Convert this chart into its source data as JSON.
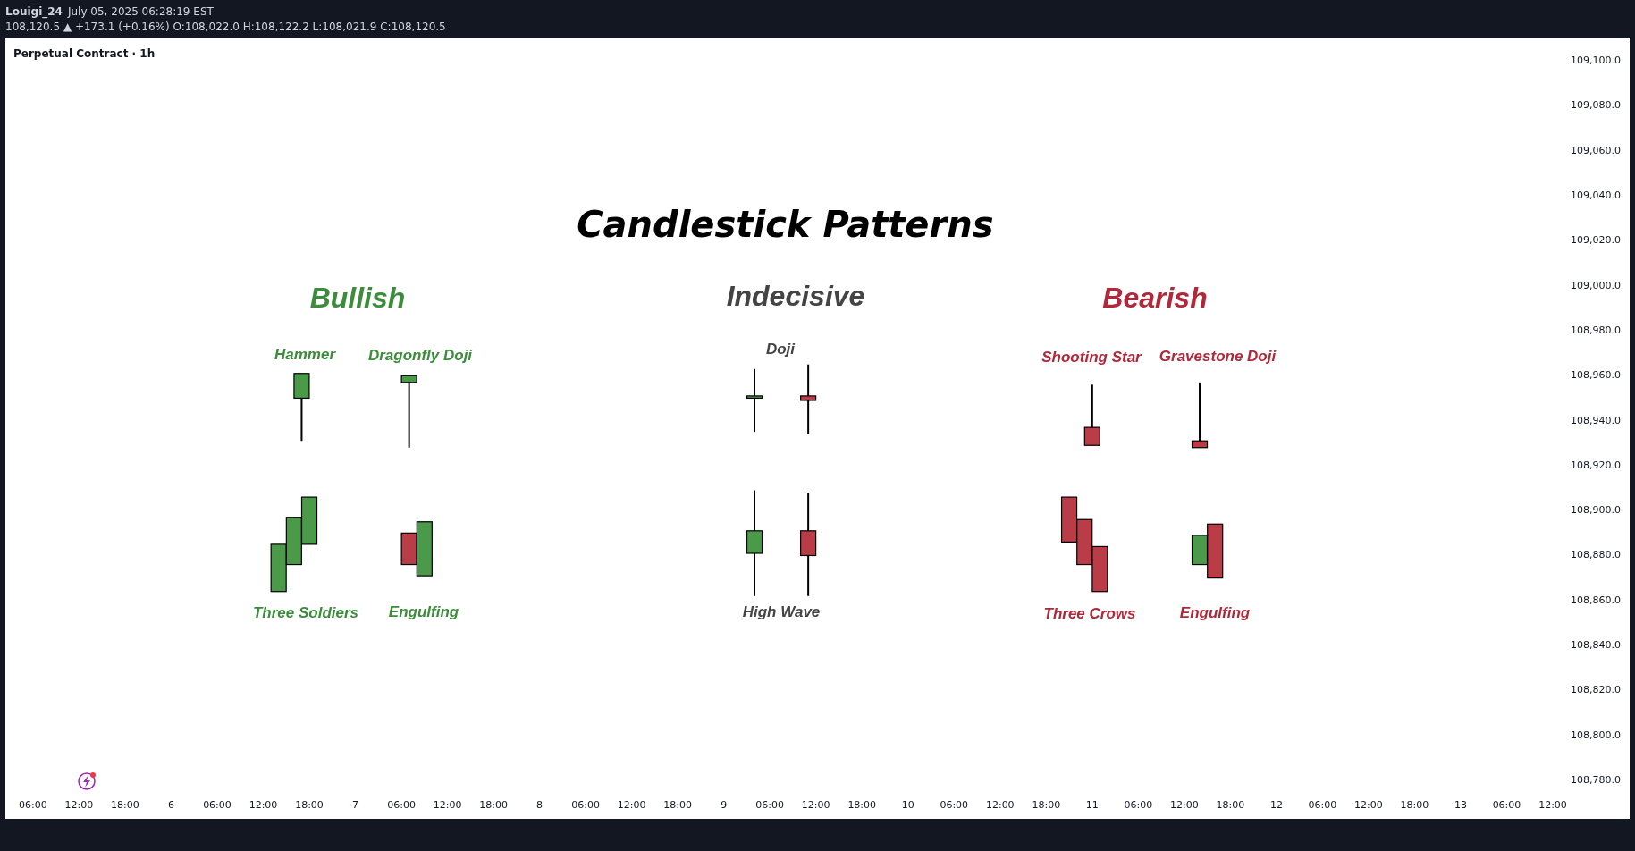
{
  "chart_data": {
    "type": "candlestick",
    "title": "Candlestick Patterns",
    "subtitle": "Perpetual Contract · 1h",
    "x": [
      "2025-07-06T14:00",
      "2025-07-06T16:00",
      "2025-07-06T17:00",
      "2025-07-06T18:00",
      "2025-07-07T07:00",
      "2025-07-07T07:00",
      "2025-07-07T09:00",
      "2025-07-09T04:00",
      "2025-07-09T04:00",
      "2025-07-09T11:00",
      "2025-07-09T11:00",
      "2025-07-10T21:00",
      "2025-07-10T23:00",
      "2025-07-11T00:00",
      "2025-07-11T01:00",
      "2025-07-11T14:00",
      "2025-07-11T14:00",
      "2025-07-11T16:00"
    ],
    "ohlc": [
      [
        108864,
        108885,
        108864,
        108885
      ],
      [
        108876,
        108897,
        108876,
        108897
      ],
      [
        108950,
        108961,
        108931,
        108961
      ],
      [
        108885,
        108906,
        108885,
        108906
      ],
      [
        108957,
        108960,
        108928,
        108960
      ],
      [
        108890,
        108890,
        108876,
        108876
      ],
      [
        108871,
        108895,
        108871,
        108895
      ],
      [
        108950,
        108963,
        108935,
        108951
      ],
      [
        108881,
        108909,
        108862,
        108891
      ],
      [
        108951,
        108965,
        108934,
        108949
      ],
      [
        108891,
        108908,
        108862,
        108880
      ],
      [
        108906,
        108906,
        108886,
        108886
      ],
      [
        108896,
        108896,
        108876,
        108876
      ],
      [
        108937,
        108956,
        108929,
        108929
      ],
      [
        108884,
        108884,
        108864,
        108864
      ],
      [
        108931,
        108957,
        108928,
        108928
      ],
      [
        108876,
        108889,
        108876,
        108889
      ],
      [
        108894,
        108894,
        108870,
        108870
      ]
    ],
    "colors": [
      "#4a9a4a",
      "#4a9a4a",
      "#4a9a4a",
      "#4a9a4a",
      "#4a9a4a",
      "#b93c46",
      "#4a9a4a",
      "#4a9a4a",
      "#4a9a4a",
      "#b93c46",
      "#b93c46",
      "#b93c46",
      "#b93c46",
      "#b93c46",
      "#b93c46",
      "#b93c46",
      "#4a9a4a",
      "#b93c46"
    ],
    "xlim": [
      "2025-07-05T02:24",
      "2025-07-13T12:00"
    ],
    "ylim": [
      108780,
      109110
    ],
    "yticks": [
      {
        "value": 108780,
        "label": "108,780.0"
      },
      {
        "value": 108800,
        "label": "108,800.0"
      },
      {
        "value": 108820,
        "label": "108,820.0"
      },
      {
        "value": 108840,
        "label": "108,840.0"
      },
      {
        "value": 108860,
        "label": "108,860.0"
      },
      {
        "value": 108880,
        "label": "108,880.0"
      },
      {
        "value": 108900,
        "label": "108,900.0"
      },
      {
        "value": 108920,
        "label": "108,920.0"
      },
      {
        "value": 108940,
        "label": "108,940.0"
      },
      {
        "value": 108960,
        "label": "108,960.0"
      },
      {
        "value": 108980,
        "label": "108,980.0"
      },
      {
        "value": 109000,
        "label": "109,000.0"
      },
      {
        "value": 109020,
        "label": "109,020.0"
      },
      {
        "value": 109040,
        "label": "109,040.0"
      },
      {
        "value": 109060,
        "label": "109,060.0"
      },
      {
        "value": 109080,
        "label": "109,080.0"
      },
      {
        "value": 109100,
        "label": "109,100.0"
      }
    ],
    "xticks": [
      {
        "value": "2025-07-05T06:00",
        "label": "06:00"
      },
      {
        "value": "2025-07-05T12:00",
        "label": "12:00"
      },
      {
        "value": "2025-07-05T18:00",
        "label": "18:00"
      },
      {
        "value": "2025-07-06T00:00",
        "label": "6"
      },
      {
        "value": "2025-07-06T06:00",
        "label": "06:00"
      },
      {
        "value": "2025-07-06T12:00",
        "label": "12:00"
      },
      {
        "value": "2025-07-06T18:00",
        "label": "18:00"
      },
      {
        "value": "2025-07-07T00:00",
        "label": "7"
      },
      {
        "value": "2025-07-07T06:00",
        "label": "06:00"
      },
      {
        "value": "2025-07-07T12:00",
        "label": "12:00"
      },
      {
        "value": "2025-07-07T18:00",
        "label": "18:00"
      },
      {
        "value": "2025-07-08T00:00",
        "label": "8"
      },
      {
        "value": "2025-07-08T06:00",
        "label": "06:00"
      },
      {
        "value": "2025-07-08T12:00",
        "label": "12:00"
      },
      {
        "value": "2025-07-08T18:00",
        "label": "18:00"
      },
      {
        "value": "2025-07-09T00:00",
        "label": "9"
      },
      {
        "value": "2025-07-09T06:00",
        "label": "06:00"
      },
      {
        "value": "2025-07-09T12:00",
        "label": "12:00"
      },
      {
        "value": "2025-07-09T18:00",
        "label": "18:00"
      },
      {
        "value": "2025-07-10T00:00",
        "label": "10"
      },
      {
        "value": "2025-07-10T06:00",
        "label": "06:00"
      },
      {
        "value": "2025-07-10T12:00",
        "label": "12:00"
      },
      {
        "value": "2025-07-10T18:00",
        "label": "18:00"
      },
      {
        "value": "2025-07-11T00:00",
        "label": "11"
      },
      {
        "value": "2025-07-11T06:00",
        "label": "06:00"
      },
      {
        "value": "2025-07-11T12:00",
        "label": "12:00"
      },
      {
        "value": "2025-07-11T18:00",
        "label": "18:00"
      },
      {
        "value": "2025-07-12T00:00",
        "label": "12"
      },
      {
        "value": "2025-07-12T06:00",
        "label": "06:00"
      },
      {
        "value": "2025-07-12T12:00",
        "label": "12:00"
      },
      {
        "value": "2025-07-12T18:00",
        "label": "18:00"
      },
      {
        "value": "2025-07-13T00:00",
        "label": "13"
      },
      {
        "value": "2025-07-13T06:00",
        "label": "06:00"
      },
      {
        "value": "2025-07-13T12:00",
        "label": "12:00"
      }
    ],
    "annotations": [
      "Louigi_24",
      "July 05, 2025 06:28:19 EST",
      "108,120.5 ▲ +173.1 (+0.16%) O:108,022.0 H:108,122.2 L:108,021.9 C:108,120.5",
      "Bullish",
      "Indecisive",
      "Bearish",
      "Hammer",
      "Dragonfly Doji",
      "Three Soldiers",
      "Engulfing",
      "Doji",
      "High Wave",
      "Shooting Star",
      "Gravestone Doji",
      "Three Crows",
      "Engulfing"
    ]
  }
}
